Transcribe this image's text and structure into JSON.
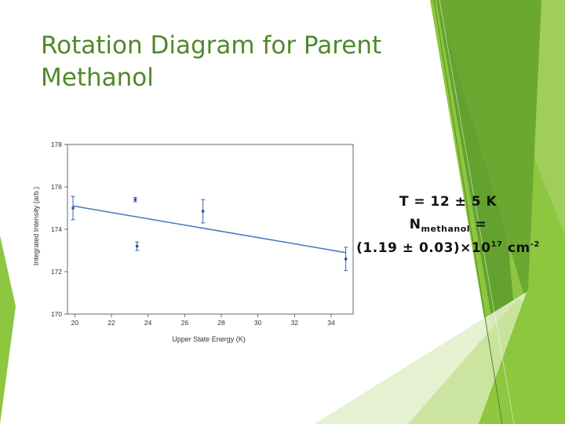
{
  "slide": {
    "title_line1": "Rotation Diagram for Parent",
    "title_line2": "Methanol",
    "accent_colors": [
      "#8dc63f",
      "#5f9d2e",
      "#c8e29a",
      "#e2f0cb"
    ]
  },
  "results": {
    "temperature_line": "T = 12 ± 5 K",
    "n_symbol": "N",
    "n_subscript": "methanol",
    "n_equals": " =",
    "column_value": "(1.19 ± 0.03)×10",
    "column_exponent": "17",
    "column_unit": " cm",
    "column_unit_exponent": "-2"
  },
  "chart_data": {
    "type": "scatter",
    "xlabel": "Upper State Energy (K)",
    "ylabel": "Integrated Intensity (arb.)",
    "xlim": [
      19.6,
      35.2
    ],
    "ylim": [
      170,
      178
    ],
    "xticks": [
      20,
      22,
      24,
      26,
      28,
      30,
      32,
      34
    ],
    "yticks": [
      170,
      172,
      174,
      176,
      178
    ],
    "grid": false,
    "points": [
      {
        "x": 19.9,
        "y": 175.0,
        "err": 0.55
      },
      {
        "x": 23.3,
        "y": 175.4,
        "err": 0.1
      },
      {
        "x": 23.4,
        "y": 173.2,
        "err": 0.2
      },
      {
        "x": 27.0,
        "y": 174.85,
        "err": 0.55
      },
      {
        "x": 34.8,
        "y": 172.6,
        "err": 0.55
      }
    ],
    "fit": {
      "x": [
        19.9,
        34.8
      ],
      "y": [
        175.1,
        172.9
      ]
    },
    "marker_color": "#2a4f9a",
    "line_color": "#4a72c4"
  }
}
